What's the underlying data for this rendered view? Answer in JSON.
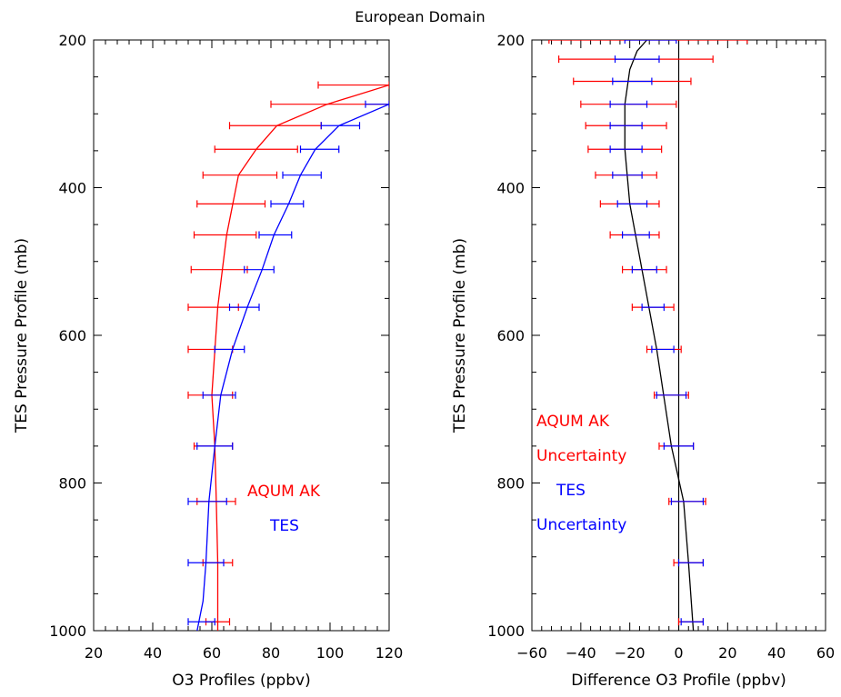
{
  "figure_title": "European Domain",
  "colors": {
    "aqum": "#ff0000",
    "tes": "#0000ff",
    "diff": "#000000",
    "axis": "#000000"
  },
  "chart_data": [
    {
      "type": "line",
      "xlabel": "O3 Profiles (ppbv)",
      "ylabel": "TES Pressure Profile (mb)",
      "xlim": [
        20,
        120
      ],
      "ylim": [
        1000,
        200
      ],
      "y_inverted": true,
      "xticks": [
        "20",
        "40",
        "60",
        "80",
        "100",
        "120"
      ],
      "yticks": [
        "200",
        "400",
        "600",
        "800",
        "1000"
      ],
      "grid": false,
      "legend": {
        "placement": "lower-right",
        "entries": [
          "AQUM AK",
          "TES"
        ]
      },
      "series": [
        {
          "name": "AQUM AK",
          "color": "#ff0000",
          "points": [
            {
              "y": 261,
              "x": 120
            },
            {
              "y": 287,
              "x": 99
            },
            {
              "y": 316,
              "x": 82
            },
            {
              "y": 348,
              "x": 75
            },
            {
              "y": 383,
              "x": 69
            },
            {
              "y": 464,
              "x": 65
            },
            {
              "y": 562,
              "x": 62
            },
            {
              "y": 681,
              "x": 60
            },
            {
              "y": 750,
              "x": 61
            },
            {
              "y": 825,
              "x": 61.5
            },
            {
              "y": 908,
              "x": 62
            },
            {
              "y": 1000,
              "x": 62
            }
          ],
          "error_bars": [
            {
              "y": 261,
              "lo": 96,
              "hi": 120
            },
            {
              "y": 287,
              "lo": 80,
              "hi": 120
            },
            {
              "y": 316,
              "lo": 66,
              "hi": 97
            },
            {
              "y": 348,
              "lo": 61,
              "hi": 89
            },
            {
              "y": 383,
              "lo": 57,
              "hi": 82
            },
            {
              "y": 422,
              "lo": 55,
              "hi": 78
            },
            {
              "y": 464,
              "lo": 54,
              "hi": 75
            },
            {
              "y": 511,
              "lo": 53,
              "hi": 72
            },
            {
              "y": 562,
              "lo": 52,
              "hi": 69
            },
            {
              "y": 619,
              "lo": 52,
              "hi": 67
            },
            {
              "y": 681,
              "lo": 52,
              "hi": 67
            },
            {
              "y": 750,
              "lo": 54,
              "hi": 67
            },
            {
              "y": 825,
              "lo": 55,
              "hi": 68
            },
            {
              "y": 908,
              "lo": 57,
              "hi": 67
            },
            {
              "y": 988,
              "lo": 58,
              "hi": 66
            }
          ]
        },
        {
          "name": "TES",
          "color": "#0000ff",
          "points": [
            {
              "y": 287,
              "x": 120
            },
            {
              "y": 316,
              "x": 103
            },
            {
              "y": 348,
              "x": 95
            },
            {
              "y": 383,
              "x": 90
            },
            {
              "y": 422,
              "x": 86
            },
            {
              "y": 464,
              "x": 81
            },
            {
              "y": 511,
              "x": 77
            },
            {
              "y": 562,
              "x": 72
            },
            {
              "y": 619,
              "x": 67
            },
            {
              "y": 681,
              "x": 63
            },
            {
              "y": 750,
              "x": 61
            },
            {
              "y": 825,
              "x": 59
            },
            {
              "y": 908,
              "x": 58
            },
            {
              "y": 960,
              "x": 57
            },
            {
              "y": 1000,
              "x": 55
            }
          ],
          "error_bars": [
            {
              "y": 287,
              "lo": 112,
              "hi": 120
            },
            {
              "y": 316,
              "lo": 97,
              "hi": 110
            },
            {
              "y": 348,
              "lo": 90,
              "hi": 103
            },
            {
              "y": 383,
              "lo": 84,
              "hi": 97
            },
            {
              "y": 422,
              "lo": 80,
              "hi": 91
            },
            {
              "y": 464,
              "lo": 76,
              "hi": 87
            },
            {
              "y": 511,
              "lo": 71,
              "hi": 81
            },
            {
              "y": 562,
              "lo": 66,
              "hi": 76
            },
            {
              "y": 619,
              "lo": 61,
              "hi": 71
            },
            {
              "y": 681,
              "lo": 57,
              "hi": 68
            },
            {
              "y": 750,
              "lo": 55,
              "hi": 67
            },
            {
              "y": 825,
              "lo": 52,
              "hi": 65
            },
            {
              "y": 908,
              "lo": 52,
              "hi": 64
            },
            {
              "y": 988,
              "lo": 52,
              "hi": 61
            }
          ]
        }
      ]
    },
    {
      "type": "line",
      "xlabel": "Difference O3 Profile (ppbv)",
      "ylabel": "TES Pressure Profile (mb)",
      "xlim": [
        -60,
        60
      ],
      "ylim": [
        1000,
        200
      ],
      "y_inverted": true,
      "xticks": [
        "−60",
        "−40",
        "−20",
        "0",
        "20",
        "40",
        "60"
      ],
      "yticks": [
        "200",
        "400",
        "600",
        "800",
        "1000"
      ],
      "grid": false,
      "reference_line_x": 0,
      "legend": {
        "placement": "center-left",
        "entries": [
          "AQUM AK",
          "Uncertainty",
          "TES",
          "Uncertainty"
        ]
      },
      "series": [
        {
          "name": "Difference",
          "color": "#000000",
          "points": [
            {
              "y": 200,
              "x": -13
            },
            {
              "y": 215,
              "x": -17
            },
            {
              "y": 240,
              "x": -20
            },
            {
              "y": 287,
              "x": -22
            },
            {
              "y": 348,
              "x": -22
            },
            {
              "y": 422,
              "x": -20
            },
            {
              "y": 511,
              "x": -15
            },
            {
              "y": 619,
              "x": -9
            },
            {
              "y": 750,
              "x": -3
            },
            {
              "y": 825,
              "x": 2
            },
            {
              "y": 908,
              "x": 4
            },
            {
              "y": 1000,
              "x": 6
            }
          ]
        },
        {
          "name": "AQUM AK Uncertainty",
          "color": "#ff0000",
          "error_bars": [
            {
              "y": 200,
              "lo": -53,
              "hi": 28
            },
            {
              "y": 226,
              "lo": -49,
              "hi": 14
            },
            {
              "y": 256,
              "lo": -43,
              "hi": 5
            },
            {
              "y": 287,
              "lo": -40,
              "hi": -1
            },
            {
              "y": 316,
              "lo": -38,
              "hi": -5
            },
            {
              "y": 348,
              "lo": -37,
              "hi": -7
            },
            {
              "y": 383,
              "lo": -34,
              "hi": -9
            },
            {
              "y": 422,
              "lo": -32,
              "hi": -8
            },
            {
              "y": 464,
              "lo": -28,
              "hi": -8
            },
            {
              "y": 511,
              "lo": -23,
              "hi": -5
            },
            {
              "y": 562,
              "lo": -19,
              "hi": -2
            },
            {
              "y": 619,
              "lo": -13,
              "hi": 1
            },
            {
              "y": 681,
              "lo": -10,
              "hi": 4
            },
            {
              "y": 750,
              "lo": -8,
              "hi": 6
            },
            {
              "y": 825,
              "lo": -4,
              "hi": 11
            },
            {
              "y": 908,
              "lo": -2,
              "hi": 10
            },
            {
              "y": 988,
              "lo": 0,
              "hi": 10
            }
          ]
        },
        {
          "name": "TES Uncertainty",
          "color": "#0000ff",
          "error_bars": [
            {
              "y": 200,
              "lo": -22,
              "hi": -1
            },
            {
              "y": 226,
              "lo": -26,
              "hi": -8
            },
            {
              "y": 256,
              "lo": -27,
              "hi": -11
            },
            {
              "y": 287,
              "lo": -28,
              "hi": -13
            },
            {
              "y": 316,
              "lo": -28,
              "hi": -15
            },
            {
              "y": 348,
              "lo": -28,
              "hi": -15
            },
            {
              "y": 383,
              "lo": -27,
              "hi": -15
            },
            {
              "y": 422,
              "lo": -25,
              "hi": -13
            },
            {
              "y": 464,
              "lo": -23,
              "hi": -12
            },
            {
              "y": 511,
              "lo": -19,
              "hi": -9
            },
            {
              "y": 562,
              "lo": -15,
              "hi": -6
            },
            {
              "y": 619,
              "lo": -11,
              "hi": -2
            },
            {
              "y": 681,
              "lo": -9,
              "hi": 3
            },
            {
              "y": 750,
              "lo": -6,
              "hi": 6
            },
            {
              "y": 825,
              "lo": -3,
              "hi": 10
            },
            {
              "y": 908,
              "lo": 0,
              "hi": 10
            },
            {
              "y": 988,
              "lo": 1,
              "hi": 10
            }
          ]
        }
      ]
    }
  ],
  "legend_text": {
    "left": [
      "AQUM AK",
      "TES"
    ],
    "right": [
      "AQUM AK",
      "Uncertainty",
      "TES",
      "Uncertainty"
    ]
  }
}
